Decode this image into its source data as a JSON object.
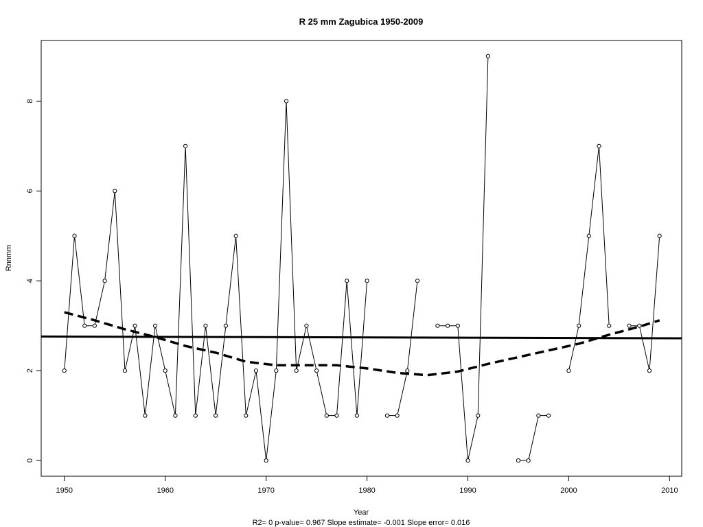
{
  "chart_data": {
    "type": "line",
    "title": "R   25   mm   Zagubica 1950-2009",
    "xlabel": "Year",
    "ylabel": "Rnnmm",
    "stats_line": "R2= 0  p-value= 0.967  Slope estimate= -0.001  Slope error= 0.016",
    "xlim": [
      1947.7,
      2011.2
    ],
    "ylim": [
      -0.35,
      9.35
    ],
    "x_ticks": [
      1950,
      1960,
      1970,
      1980,
      1990,
      2000,
      2010
    ],
    "y_ticks": [
      0,
      2,
      4,
      6,
      8
    ],
    "grid": false,
    "series": [
      {
        "role": "observed",
        "style": "thin solid line with open circle markers",
        "x": [
          1950,
          1951,
          1952,
          1953,
          1954,
          1955,
          1956,
          1957,
          1958,
          1959,
          1960,
          1961,
          1962,
          1963,
          1964,
          1965,
          1966,
          1967,
          1968,
          1969,
          1970,
          1971,
          1972,
          1973,
          1974,
          1975,
          1976,
          1977,
          1978,
          1979,
          1980,
          1981,
          1982,
          1983,
          1984,
          1985,
          1986,
          1987,
          1988,
          1989,
          1990,
          1991,
          1992,
          1993,
          1994,
          1995,
          1996,
          1997,
          1998,
          1999,
          2000,
          2001,
          2002,
          2003,
          2004,
          2005,
          2006,
          2007,
          2008,
          2009
        ],
        "values": [
          2,
          5,
          3,
          3,
          4,
          6,
          2,
          3,
          1,
          3,
          2,
          1,
          7,
          1,
          3,
          1,
          3,
          5,
          1,
          2,
          0,
          2,
          8,
          2,
          3,
          2,
          1,
          1,
          4,
          1,
          4,
          null,
          1,
          1,
          2,
          4,
          null,
          3,
          3,
          3,
          0,
          1,
          9,
          null,
          null,
          0,
          0,
          1,
          1,
          null,
          2,
          3,
          5,
          7,
          3,
          null,
          3,
          3,
          2,
          5
        ]
      },
      {
        "role": "linear-trend",
        "style": "thick solid line",
        "x": [
          1947.7,
          2011.2
        ],
        "values": [
          2.76,
          2.72
        ]
      },
      {
        "role": "smoothed-trend",
        "style": "thick dashed line",
        "x": [
          1950,
          1953,
          1956,
          1959,
          1962,
          1965,
          1968,
          1971,
          1974,
          1977,
          1980,
          1983,
          1986,
          1989,
          1992,
          1995,
          1998,
          2001,
          2004,
          2007,
          2009
        ],
        "values": [
          3.3,
          3.12,
          2.92,
          2.75,
          2.55,
          2.4,
          2.2,
          2.12,
          2.12,
          2.12,
          2.05,
          1.95,
          1.9,
          1.98,
          2.15,
          2.3,
          2.45,
          2.6,
          2.8,
          2.98,
          3.12
        ]
      }
    ]
  }
}
